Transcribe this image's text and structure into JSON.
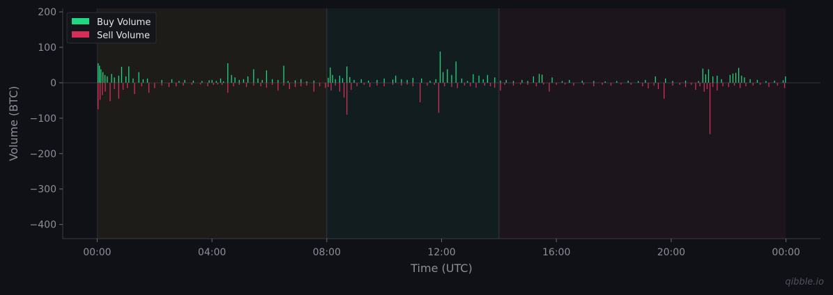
{
  "watermark": "qibble.io",
  "chart_data": {
    "type": "bar",
    "title": "",
    "xlabel": "Time (UTC)",
    "ylabel": "Volume (BTC)",
    "ylim": [
      -440,
      210
    ],
    "xlim_hours": [
      -1.2,
      25.2
    ],
    "yticks": [
      200,
      100,
      0,
      -100,
      -200,
      -300,
      -400
    ],
    "ytick_labels": [
      "200",
      "100",
      "0",
      "−100",
      "−200",
      "−300",
      "−400"
    ],
    "xticks_hours": [
      0,
      4,
      8,
      12,
      16,
      20,
      24
    ],
    "xtick_labels": [
      "00:00",
      "04:00",
      "08:00",
      "12:00",
      "16:00",
      "20:00",
      "00:00"
    ],
    "grid": false,
    "legend_placement": "top-left",
    "sessions": [
      {
        "start_hour": 0,
        "end_hour": 8,
        "color": "#1e1c19"
      },
      {
        "start_hour": 8,
        "end_hour": 14,
        "color": "#111d1f"
      },
      {
        "start_hour": 14,
        "end_hour": 24,
        "color": "#1c151c"
      }
    ],
    "series": [
      {
        "name": "Buy Volume",
        "color": "#1ed882",
        "bars": [
          [
            0.03,
            55
          ],
          [
            0.08,
            48
          ],
          [
            0.13,
            38
          ],
          [
            0.2,
            30
          ],
          [
            0.27,
            22
          ],
          [
            0.35,
            18
          ],
          [
            0.5,
            25
          ],
          [
            0.6,
            15
          ],
          [
            0.75,
            20
          ],
          [
            0.85,
            45
          ],
          [
            1.0,
            18
          ],
          [
            1.1,
            46
          ],
          [
            1.25,
            12
          ],
          [
            1.45,
            30
          ],
          [
            1.6,
            10
          ],
          [
            1.75,
            12
          ],
          [
            2.25,
            8
          ],
          [
            2.6,
            10
          ],
          [
            2.85,
            5
          ],
          [
            3.05,
            8
          ],
          [
            3.35,
            6
          ],
          [
            3.65,
            5
          ],
          [
            3.9,
            7
          ],
          [
            4.0,
            8
          ],
          [
            4.15,
            5
          ],
          [
            4.3,
            12
          ],
          [
            4.4,
            4
          ],
          [
            4.55,
            55
          ],
          [
            4.68,
            22
          ],
          [
            4.8,
            15
          ],
          [
            4.95,
            8
          ],
          [
            5.1,
            10
          ],
          [
            5.25,
            18
          ],
          [
            5.45,
            38
          ],
          [
            5.6,
            12
          ],
          [
            5.75,
            8
          ],
          [
            5.9,
            35
          ],
          [
            6.1,
            10
          ],
          [
            6.3,
            8
          ],
          [
            6.5,
            48
          ],
          [
            6.65,
            5
          ],
          [
            6.9,
            7
          ],
          [
            7.1,
            10
          ],
          [
            7.3,
            4
          ],
          [
            7.55,
            6
          ],
          [
            8.05,
            14
          ],
          [
            8.12,
            43
          ],
          [
            8.2,
            22
          ],
          [
            8.3,
            10
          ],
          [
            8.45,
            20
          ],
          [
            8.55,
            13
          ],
          [
            8.7,
            46
          ],
          [
            8.8,
            16
          ],
          [
            8.95,
            8
          ],
          [
            9.2,
            10
          ],
          [
            9.45,
            6
          ],
          [
            9.75,
            8
          ],
          [
            10.0,
            12
          ],
          [
            10.3,
            9
          ],
          [
            10.4,
            20
          ],
          [
            10.6,
            10
          ],
          [
            10.8,
            8
          ],
          [
            11.0,
            14
          ],
          [
            11.3,
            12
          ],
          [
            11.6,
            6
          ],
          [
            11.8,
            10
          ],
          [
            11.95,
            88
          ],
          [
            12.05,
            30
          ],
          [
            12.2,
            38
          ],
          [
            12.35,
            22
          ],
          [
            12.5,
            60
          ],
          [
            12.7,
            12
          ],
          [
            12.9,
            5
          ],
          [
            13.1,
            24
          ],
          [
            13.3,
            20
          ],
          [
            13.45,
            10
          ],
          [
            13.6,
            22
          ],
          [
            13.85,
            15
          ],
          [
            14.05,
            6
          ],
          [
            14.25,
            8
          ],
          [
            14.5,
            5
          ],
          [
            14.8,
            8
          ],
          [
            15.0,
            5
          ],
          [
            15.2,
            18
          ],
          [
            15.4,
            25
          ],
          [
            15.5,
            23
          ],
          [
            15.85,
            15
          ],
          [
            16.2,
            5
          ],
          [
            16.45,
            8
          ],
          [
            16.9,
            6
          ],
          [
            17.3,
            5
          ],
          [
            17.7,
            4
          ],
          [
            18.1,
            5
          ],
          [
            18.5,
            6
          ],
          [
            18.85,
            5
          ],
          [
            19.1,
            8
          ],
          [
            19.45,
            18
          ],
          [
            19.8,
            12
          ],
          [
            20.05,
            5
          ],
          [
            20.5,
            6
          ],
          [
            20.95,
            5
          ],
          [
            21.1,
            40
          ],
          [
            21.2,
            24
          ],
          [
            21.3,
            38
          ],
          [
            21.45,
            18
          ],
          [
            21.6,
            20
          ],
          [
            21.75,
            10
          ],
          [
            22.05,
            22
          ],
          [
            22.15,
            26
          ],
          [
            22.25,
            28
          ],
          [
            22.35,
            42
          ],
          [
            22.45,
            20
          ],
          [
            22.55,
            15
          ],
          [
            22.75,
            10
          ],
          [
            23.0,
            8
          ],
          [
            23.3,
            5
          ],
          [
            23.6,
            6
          ],
          [
            23.9,
            7
          ],
          [
            23.98,
            18
          ]
        ]
      },
      {
        "name": "Sell Volume",
        "color": "#d62e58",
        "bars": [
          [
            0.03,
            -75
          ],
          [
            0.1,
            -48
          ],
          [
            0.18,
            -35
          ],
          [
            0.28,
            -25
          ],
          [
            0.45,
            -52
          ],
          [
            0.6,
            -18
          ],
          [
            0.75,
            -45
          ],
          [
            0.9,
            -20
          ],
          [
            1.05,
            -15
          ],
          [
            1.3,
            -32
          ],
          [
            1.55,
            -10
          ],
          [
            1.8,
            -28
          ],
          [
            2.0,
            -15
          ],
          [
            2.25,
            -8
          ],
          [
            2.5,
            -12
          ],
          [
            2.75,
            -10
          ],
          [
            3.0,
            -8
          ],
          [
            3.3,
            -6
          ],
          [
            3.6,
            -5
          ],
          [
            3.85,
            -10
          ],
          [
            4.05,
            -6
          ],
          [
            4.2,
            -5
          ],
          [
            4.35,
            -6
          ],
          [
            4.55,
            -28
          ],
          [
            4.75,
            -10
          ],
          [
            4.95,
            -6
          ],
          [
            5.2,
            -12
          ],
          [
            5.45,
            -8
          ],
          [
            5.7,
            -10
          ],
          [
            5.9,
            -14
          ],
          [
            6.1,
            -6
          ],
          [
            6.3,
            -22
          ],
          [
            6.5,
            -8
          ],
          [
            6.7,
            -18
          ],
          [
            6.9,
            -12
          ],
          [
            7.1,
            -10
          ],
          [
            7.3,
            -8
          ],
          [
            7.55,
            -25
          ],
          [
            7.75,
            -10
          ],
          [
            7.95,
            -15
          ],
          [
            8.05,
            -12
          ],
          [
            8.15,
            -22
          ],
          [
            8.3,
            -8
          ],
          [
            8.45,
            -25
          ],
          [
            8.6,
            -42
          ],
          [
            8.7,
            -90
          ],
          [
            8.85,
            -20
          ],
          [
            9.05,
            -10
          ],
          [
            9.3,
            -6
          ],
          [
            9.5,
            -12
          ],
          [
            9.75,
            -8
          ],
          [
            10.0,
            -10
          ],
          [
            10.3,
            -6
          ],
          [
            10.6,
            -8
          ],
          [
            10.8,
            -5
          ],
          [
            11.0,
            -10
          ],
          [
            11.25,
            -55
          ],
          [
            11.5,
            -8
          ],
          [
            11.75,
            -6
          ],
          [
            11.9,
            -85
          ],
          [
            12.1,
            -10
          ],
          [
            12.35,
            -12
          ],
          [
            12.55,
            -15
          ],
          [
            12.8,
            -8
          ],
          [
            13.0,
            -10
          ],
          [
            13.2,
            -14
          ],
          [
            13.5,
            -8
          ],
          [
            13.7,
            -10
          ],
          [
            13.85,
            -14
          ],
          [
            14.05,
            -22
          ],
          [
            14.2,
            -6
          ],
          [
            14.5,
            -8
          ],
          [
            14.75,
            -5
          ],
          [
            15.0,
            -6
          ],
          [
            15.3,
            -10
          ],
          [
            15.55,
            -5
          ],
          [
            15.75,
            -25
          ],
          [
            16.0,
            -6
          ],
          [
            16.3,
            -5
          ],
          [
            16.6,
            -8
          ],
          [
            16.95,
            -6
          ],
          [
            17.3,
            -10
          ],
          [
            17.6,
            -6
          ],
          [
            17.9,
            -8
          ],
          [
            18.25,
            -5
          ],
          [
            18.6,
            -6
          ],
          [
            19.0,
            -10
          ],
          [
            19.2,
            -16
          ],
          [
            19.4,
            -8
          ],
          [
            19.55,
            -18
          ],
          [
            19.75,
            -45
          ],
          [
            20.05,
            -8
          ],
          [
            20.3,
            -6
          ],
          [
            20.5,
            -12
          ],
          [
            20.7,
            -6
          ],
          [
            20.85,
            -20
          ],
          [
            21.0,
            -10
          ],
          [
            21.15,
            -25
          ],
          [
            21.25,
            -18
          ],
          [
            21.35,
            -145
          ],
          [
            21.45,
            -12
          ],
          [
            21.6,
            -22
          ],
          [
            21.8,
            -10
          ],
          [
            22.0,
            -12
          ],
          [
            22.2,
            -8
          ],
          [
            22.4,
            -15
          ],
          [
            22.6,
            -10
          ],
          [
            22.85,
            -8
          ],
          [
            23.1,
            -6
          ],
          [
            23.4,
            -12
          ],
          [
            23.7,
            -8
          ],
          [
            23.95,
            -15
          ]
        ]
      }
    ]
  }
}
